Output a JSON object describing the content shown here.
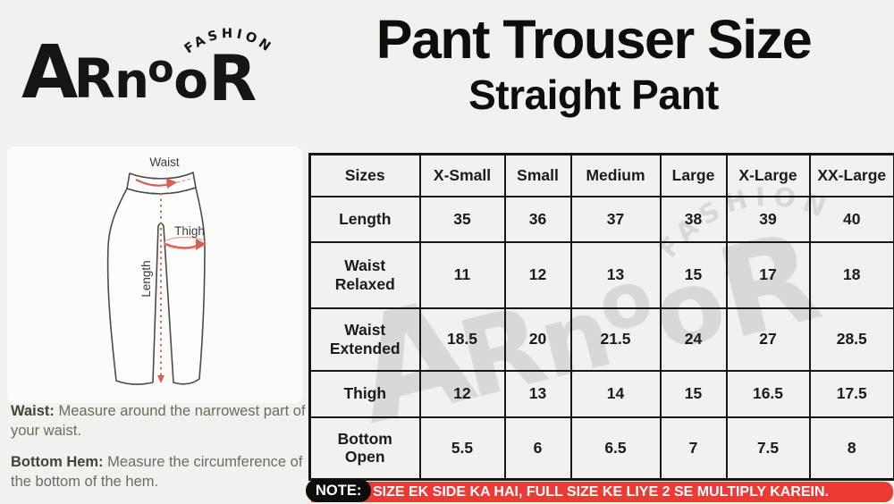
{
  "logo": {
    "brand": "ARnooR",
    "tagline": "FASHION"
  },
  "header": {
    "title": "Pant Trouser Size",
    "subtitle": "Straight Pant"
  },
  "diagram": {
    "waist_label": "Waist",
    "thigh_label": "Thigh",
    "length_label": "Length"
  },
  "notes": [
    {
      "label": "Waist:",
      "text": "Measure around the narrowest part of your waist."
    },
    {
      "label": "Bottom Hem:",
      "text": "Measure the circumference of the bottom of the hem."
    }
  ],
  "table": {
    "columns": [
      "Sizes",
      "X-Small",
      "Small",
      "Medium",
      "Large",
      "X-Large",
      "XX-Large"
    ],
    "rows": [
      {
        "label": "Length",
        "values": [
          "35",
          "36",
          "37",
          "38",
          "39",
          "40"
        ]
      },
      {
        "label": "Waist Relaxed",
        "values": [
          "11",
          "12",
          "13",
          "15",
          "17",
          "18"
        ]
      },
      {
        "label": "Waist Extended",
        "values": [
          "18.5",
          "20",
          "21.5",
          "24",
          "27",
          "28.5"
        ]
      },
      {
        "label": "Thigh",
        "values": [
          "12",
          "13",
          "14",
          "15",
          "16.5",
          "17.5"
        ]
      },
      {
        "label": "Bottom Open",
        "values": [
          "5.5",
          "6",
          "6.5",
          "7",
          "7.5",
          "8"
        ]
      }
    ]
  },
  "note_bar": {
    "label": "NOTE:",
    "text": "SIZE EK SIDE KA HAI, FULL SIZE KE LIYE 2 SE MULTIPLY KAREIN."
  },
  "colors": {
    "background": "#f2f1ee",
    "panel": "#fbfbf9",
    "table_border": "#161616",
    "note_red": "#ee3a34",
    "note_pill_black": "#0d0d0d",
    "diagram_accent": "#d4604e",
    "watermark_gray": "#d9d6d3"
  }
}
